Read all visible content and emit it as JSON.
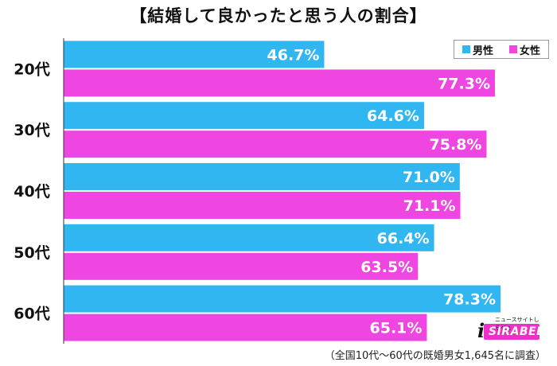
{
  "title": "【結婚して良かったと思う人の割合】",
  "note": "（全国10代～60代の既婚男女1,645名に調査）",
  "logo": {
    "main": "SIRABEE",
    "sub": "ニュースサイトしらべぇ"
  },
  "colors": {
    "male": "#30b6f0",
    "female": "#f046e1"
  },
  "chart_data": {
    "type": "bar",
    "orientation": "horizontal",
    "title": "【結婚して良かったと思う人の割合】",
    "categories": [
      "20代",
      "30代",
      "40代",
      "50代",
      "60代"
    ],
    "series": [
      {
        "name": "男性",
        "values": [
          46.7,
          64.6,
          71.0,
          66.4,
          78.3
        ]
      },
      {
        "name": "女性",
        "values": [
          77.3,
          75.8,
          71.1,
          63.5,
          65.1
        ]
      }
    ],
    "value_labels": {
      "男性": [
        "46.7%",
        "64.6%",
        "71.0%",
        "66.4%",
        "78.3%"
      ],
      "女性": [
        "77.3%",
        "75.8%",
        "71.1%",
        "63.5%",
        "65.1%"
      ]
    },
    "xlim": [
      0,
      87
    ],
    "grid": false,
    "legend": "top-right"
  }
}
